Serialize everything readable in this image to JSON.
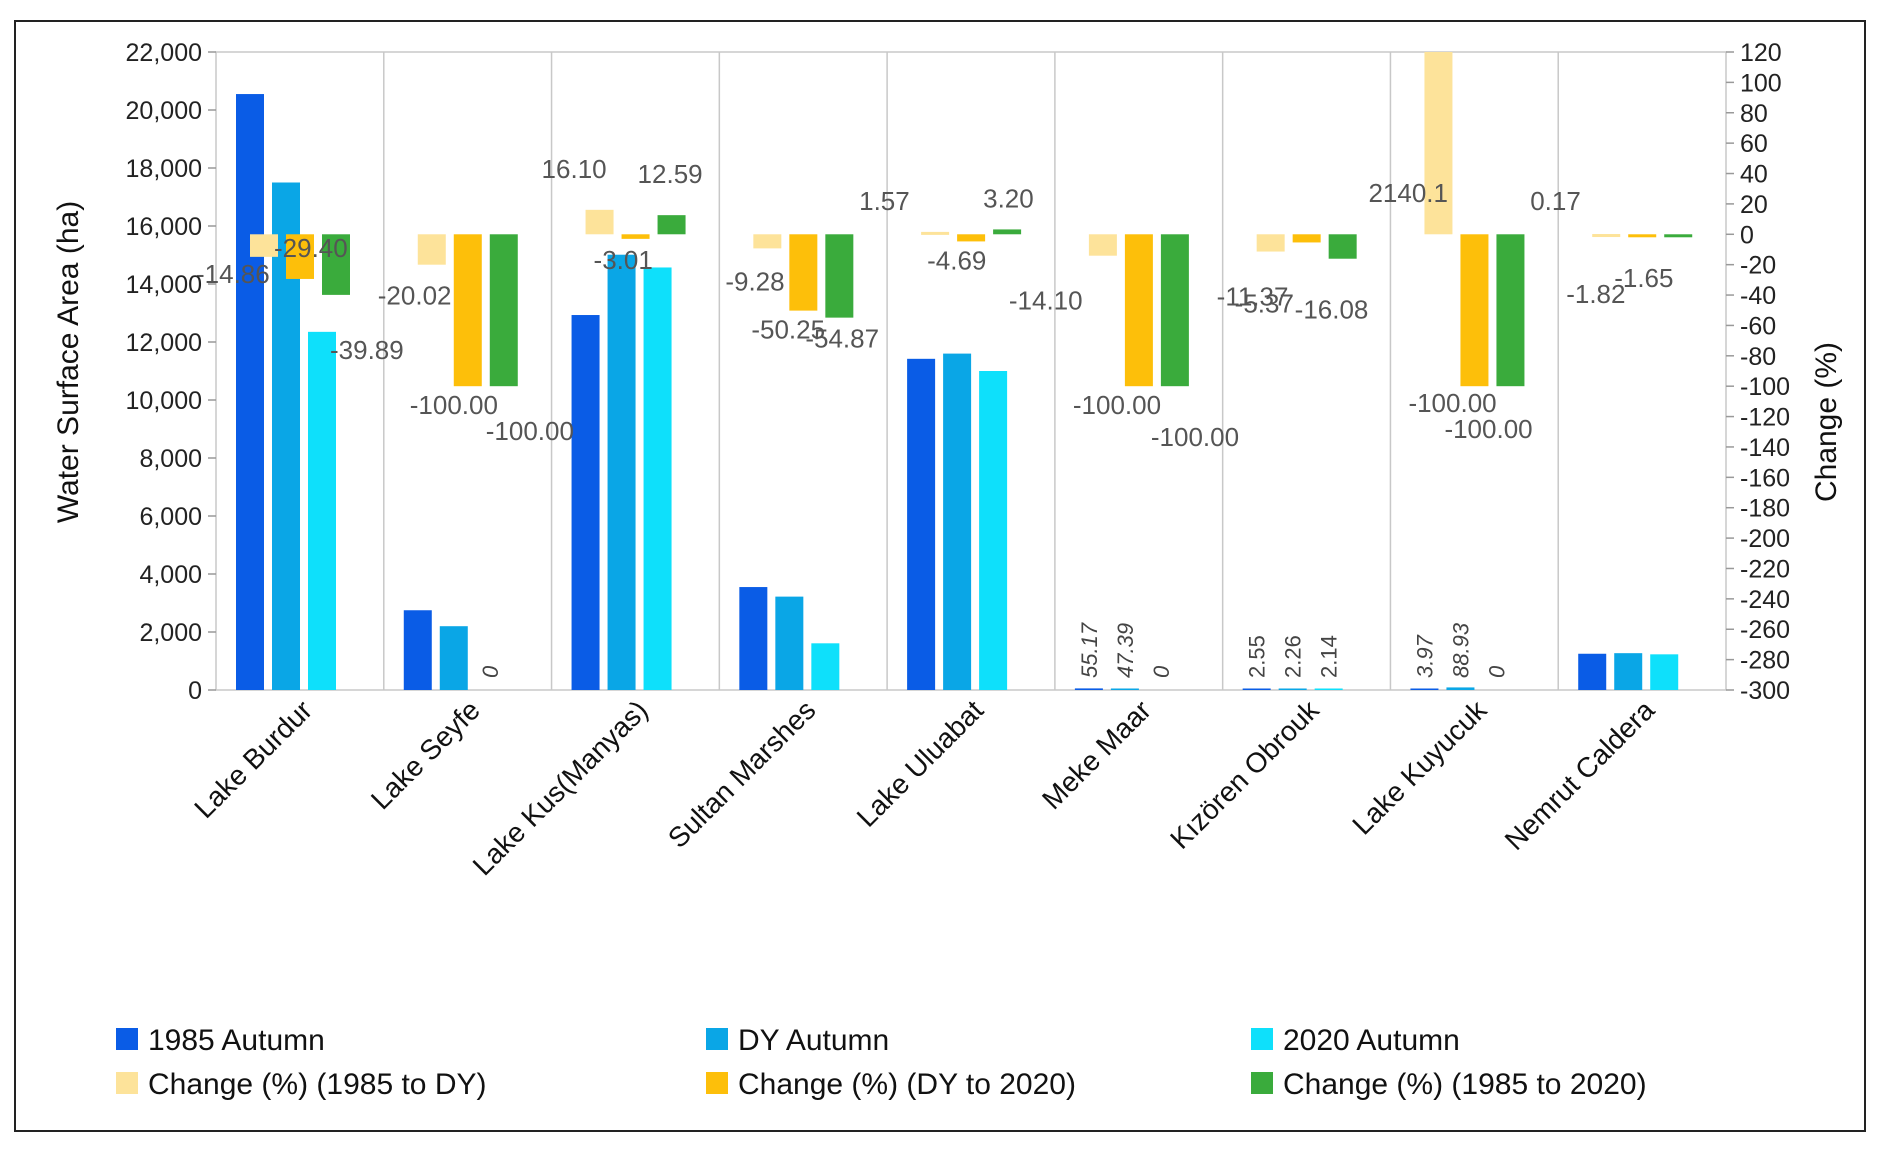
{
  "chart_data": {
    "type": "bar",
    "title": "",
    "ylabel": "Water Surface Area (ha)",
    "y2label": "Change (%)",
    "ylim": [
      0,
      22000
    ],
    "y2lim": [
      -300,
      120
    ],
    "yticks": [
      "0",
      "2,000",
      "4,000",
      "6,000",
      "8,000",
      "10,000",
      "12,000",
      "14,000",
      "16,000",
      "18,000",
      "20,000",
      "22,000"
    ],
    "y2ticks": [
      "-300",
      "-280",
      "-260",
      "-240",
      "-220",
      "-200",
      "-180",
      "-160",
      "-140",
      "-120",
      "-100",
      "-80",
      "-60",
      "-40",
      "-20",
      "0",
      "20",
      "40",
      "60",
      "80",
      "100",
      "120"
    ],
    "categories": [
      "Lake Burdur",
      "Lake Seyfe",
      "Lake Kus(Manyas)",
      "Sultan Marshes",
      "Lake Uluabat",
      "Meke Maar",
      "Kızören Obrouk",
      "Lake Kuyucuk",
      "Nemrut Caldera"
    ],
    "area_series": [
      {
        "name": "1985 Autumn",
        "color": "#0a5ce6",
        "values": [
          20550,
          2750,
          12930,
          3550,
          11420,
          55.17,
          2.55,
          3.97,
          1250
        ]
      },
      {
        "name": "DY Autumn",
        "color": "#0aa6e6",
        "values": [
          17500,
          2200,
          15010,
          3220,
          11600,
          47.39,
          2.26,
          88.93,
          1270
        ]
      },
      {
        "name": "2020 Autumn",
        "color": "#0ee0fb",
        "values": [
          12350,
          0,
          14570,
          1610,
          11000,
          0,
          2.14,
          0,
          1230
        ]
      }
    ],
    "change_series": [
      {
        "name": "Change (%)  (1985 to DY)",
        "color": "#fde39a",
        "values": [
          -14.86,
          -20.02,
          16.1,
          -9.28,
          1.57,
          -14.1,
          -11.37,
          2140.1,
          0.17
        ]
      },
      {
        "name": "Change (%)  (DY to 2020)",
        "color": "#fdbf0a",
        "values": [
          -29.4,
          -100.0,
          -3.01,
          -50.25,
          -4.69,
          -100.0,
          -5.37,
          -100.0,
          -1.82
        ]
      },
      {
        "name": "Change (%)  (1985 to 2020)",
        "color": "#3aab3c",
        "values": [
          -39.89,
          -100.0,
          12.59,
          -54.87,
          3.2,
          -100.0,
          -16.08,
          -100.0,
          -1.65
        ]
      }
    ],
    "area_labels": {
      "Meke Maar": [
        "55.17",
        "47.39",
        "0"
      ],
      "Kızören Obrouk": [
        "2.55",
        "2.26",
        "2.14"
      ],
      "Lake Kuyucuk": [
        "3.97",
        "88.93",
        "0"
      ],
      "Lake Seyfe": [
        "",
        "",
        "0"
      ]
    },
    "change_labels": [
      [
        "-14.86",
        "-29.40",
        "-39.89"
      ],
      [
        "-20.02",
        "-100.00",
        "-100.00"
      ],
      [
        "16.10",
        "-3.01",
        "12.59"
      ],
      [
        "-9.28",
        "-50.25",
        "-54.87"
      ],
      [
        "1.57",
        "-4.69",
        "3.20"
      ],
      [
        "-14.10",
        "-100.00",
        "-100.00"
      ],
      [
        "-11.37",
        "-5.37",
        "-16.08"
      ],
      [
        "2140.1",
        "-100.00",
        "-100.00"
      ],
      [
        "0.17",
        "-1.82",
        "-1.65"
      ]
    ],
    "grid": "vertical category separators",
    "legend_position": "bottom"
  }
}
